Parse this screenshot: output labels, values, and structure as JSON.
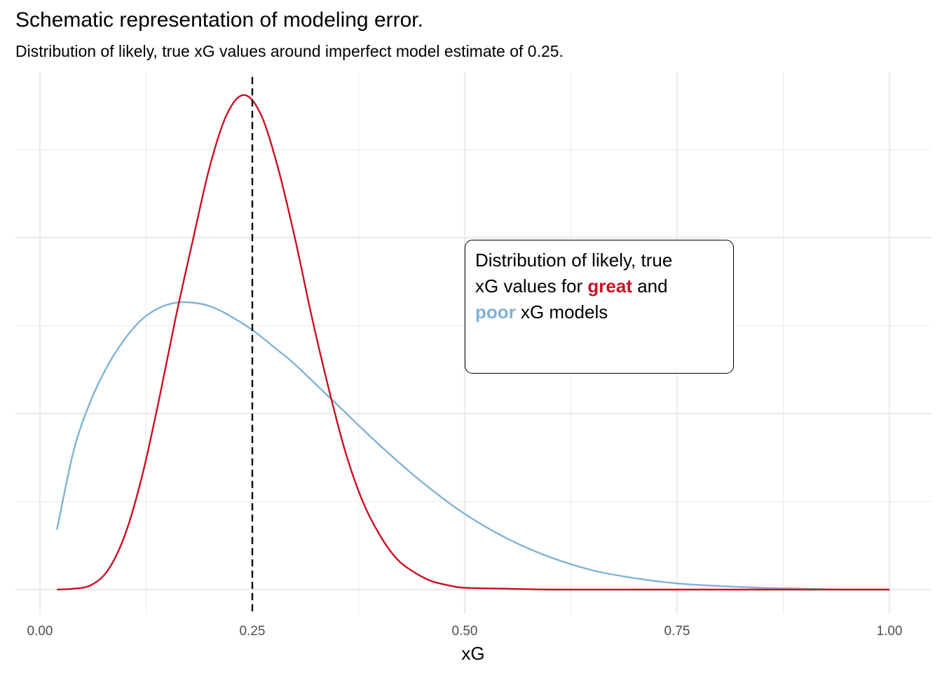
{
  "chart_data": {
    "type": "line",
    "title": "Schematic representation of modeling error.",
    "subtitle": "Distribution of likely, true xG values around imperfect model estimate of 0.25.",
    "xlabel": "xG",
    "ylabel": "",
    "xlim": [
      0,
      1
    ],
    "ylim": [
      0,
      5.6
    ],
    "x_ticks": [
      0.0,
      0.25,
      0.5,
      0.75,
      1.0
    ],
    "x_tick_labels": [
      "0.00",
      "0.25",
      "0.50",
      "0.75",
      "1.00"
    ],
    "y_tick_labels": [],
    "grid": true,
    "legend": "none",
    "reference_line": {
      "x": 0.25,
      "style": "dashed",
      "color": "#000000"
    },
    "series": [
      {
        "color": "#cb0f24",
        "x": [
          0.02,
          0.04,
          0.06,
          0.08,
          0.1,
          0.12,
          0.14,
          0.16,
          0.18,
          0.2,
          0.22,
          0.24,
          0.26,
          0.28,
          0.3,
          0.32,
          0.34,
          0.36,
          0.38,
          0.4,
          0.42,
          0.44,
          0.46,
          0.48,
          0.5,
          0.55,
          0.6,
          0.7,
          0.8,
          0.9,
          1.0
        ],
        "y": [
          0.0,
          0.01,
          0.05,
          0.22,
          0.62,
          1.28,
          2.15,
          3.1,
          3.97,
          4.81,
          5.4,
          5.62,
          5.4,
          4.8,
          4.0,
          3.1,
          2.28,
          1.55,
          1.0,
          0.62,
          0.35,
          0.2,
          0.1,
          0.05,
          0.02,
          0.01,
          0.0,
          0.0,
          0.0,
          0.0,
          0.0
        ]
      },
      {
        "color": "#7fb3d5",
        "x": [
          0.02,
          0.04,
          0.06,
          0.08,
          0.1,
          0.12,
          0.14,
          0.16,
          0.18,
          0.2,
          0.22,
          0.25,
          0.28,
          0.3,
          0.35,
          0.4,
          0.45,
          0.5,
          0.55,
          0.6,
          0.65,
          0.7,
          0.75,
          0.8,
          0.85,
          0.9,
          0.95,
          1.0
        ],
        "y": [
          0.68,
          1.59,
          2.15,
          2.55,
          2.85,
          3.07,
          3.2,
          3.26,
          3.26,
          3.22,
          3.13,
          2.95,
          2.72,
          2.56,
          2.1,
          1.64,
          1.22,
          0.86,
          0.58,
          0.37,
          0.22,
          0.13,
          0.07,
          0.04,
          0.02,
          0.01,
          0.0,
          0.0
        ]
      }
    ]
  },
  "annotation": {
    "line1": "Distribution of likely, true",
    "line2_prefix": "xG values for ",
    "line2_highlight": "great",
    "line2_suffix": " and",
    "line3_highlight": "poor",
    "line3_suffix": " xG models",
    "great_color": "#cb0f24",
    "poor_color": "#7fb3d5"
  }
}
